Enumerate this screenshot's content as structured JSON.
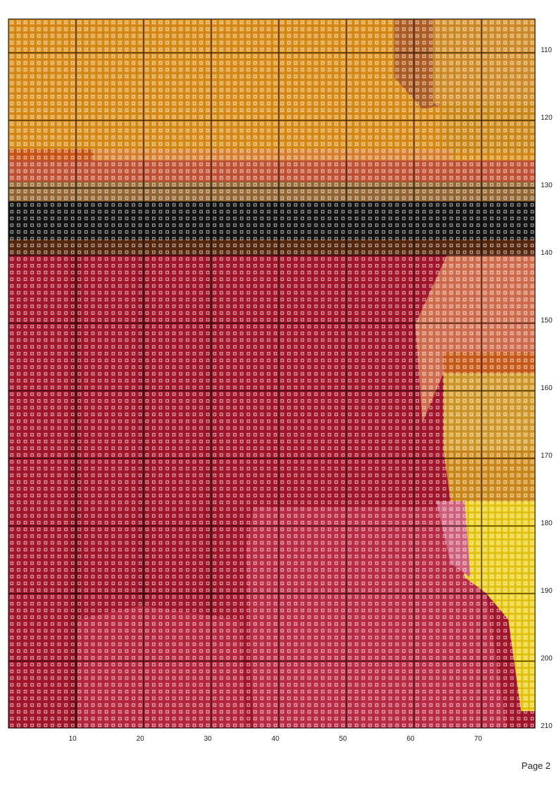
{
  "column_labels": [
    10,
    20,
    30,
    40,
    50,
    60,
    70
  ],
  "row_labels": [
    110,
    120,
    130,
    140,
    150,
    160,
    170,
    180,
    190,
    200,
    210
  ],
  "footer": "Page 2"
}
